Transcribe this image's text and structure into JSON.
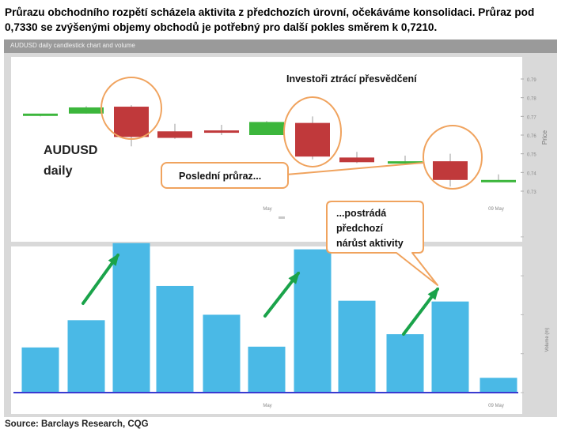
{
  "headline": "Průrazu obchodního rozpětí scházela aktivita z předchozích úrovní, očekáváme konsolidaci. Průraz pod 0,7330 se zvýšenými objemy obchodů je potřebný pro další pokles směrem k 0,7210.",
  "panel_title": "AUDUSD daily candlestick chart and volume",
  "source": "Source: Barclays Research, CQG",
  "colors": {
    "bull": "#3cb63c",
    "bear": "#c0393b",
    "volume": "#4ab9e6",
    "arrow": "#1aa34a",
    "highlight": "#f0a35e"
  },
  "chart_data": [
    {
      "type": "candlestick",
      "title": "AUDUSD daily",
      "ylabel": "Price",
      "ylim": [
        0.73,
        0.79
      ],
      "y_ticks": [
        "0.79",
        "0.78",
        "0.77",
        "0.76",
        "0.75",
        "0.74",
        "0.73"
      ],
      "x_ticks": [
        "May",
        "09 May"
      ],
      "annotations": [
        "Investoři ztrácí přesvědčení",
        "Poslední průraz..."
      ],
      "candles": [
        {
          "open": 0.7705,
          "high": 0.771,
          "low": 0.77,
          "close": 0.7715
        },
        {
          "open": 0.7715,
          "high": 0.7755,
          "low": 0.7715,
          "close": 0.7748
        },
        {
          "open": 0.7752,
          "high": 0.776,
          "low": 0.754,
          "close": 0.759
        },
        {
          "open": 0.762,
          "high": 0.766,
          "low": 0.758,
          "close": 0.7585
        },
        {
          "open": 0.7625,
          "high": 0.7655,
          "low": 0.76,
          "close": 0.762
        },
        {
          "open": 0.76,
          "high": 0.7675,
          "low": 0.76,
          "close": 0.767
        },
        {
          "open": 0.7665,
          "high": 0.77,
          "low": 0.747,
          "close": 0.7485
        },
        {
          "open": 0.748,
          "high": 0.751,
          "low": 0.745,
          "close": 0.7455
        },
        {
          "open": 0.745,
          "high": 0.749,
          "low": 0.744,
          "close": 0.746
        },
        {
          "open": 0.746,
          "high": 0.75,
          "low": 0.7325,
          "close": 0.736
        },
        {
          "open": 0.7355,
          "high": 0.739,
          "low": 0.735,
          "close": 0.736
        }
      ]
    },
    {
      "type": "bar",
      "ylabel": "Volume (m)",
      "x_ticks": [
        "May",
        "09 May"
      ],
      "values": [
        58,
        93,
        192,
        137,
        100,
        59,
        184,
        118,
        75,
        117,
        19
      ],
      "ylim": [
        0,
        210
      ],
      "annotations": [
        "...postrádá",
        "předchozí",
        "nárůst aktivity"
      ]
    }
  ]
}
